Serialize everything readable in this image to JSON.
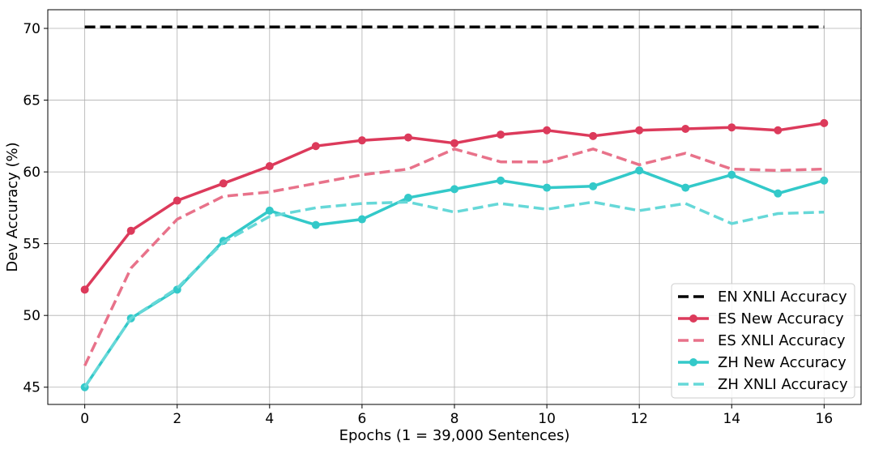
{
  "chart_data": {
    "type": "line",
    "xlabel": "Epochs (1 = 39,000 Sentences)",
    "ylabel": "Dev Accuracy (%)",
    "xlim": [
      -0.8,
      16.8
    ],
    "ylim": [
      43.8,
      71.3
    ],
    "xticks": [
      0,
      2,
      4,
      6,
      8,
      10,
      12,
      14,
      16
    ],
    "yticks": [
      45,
      50,
      55,
      60,
      65,
      70
    ],
    "grid": true,
    "legend_position": "bottom-right",
    "series": [
      {
        "name": "EN XNLI Accuracy",
        "color": "#000000",
        "dashed": true,
        "markers": false,
        "x": [
          0,
          16
        ],
        "y": [
          70.1,
          70.1
        ]
      },
      {
        "name": "ES New Accuracy",
        "color": "#dc3a5b",
        "dashed": false,
        "markers": true,
        "x": [
          0,
          1,
          2,
          3,
          4,
          5,
          6,
          7,
          8,
          9,
          10,
          11,
          12,
          13,
          14,
          15,
          16
        ],
        "y": [
          51.8,
          55.9,
          58.0,
          59.2,
          60.4,
          61.8,
          62.2,
          62.4,
          62.0,
          62.6,
          62.9,
          62.5,
          62.9,
          63.0,
          63.1,
          62.9,
          63.4
        ]
      },
      {
        "name": "ES XNLI Accuracy",
        "color": "#e8728a",
        "dashed": true,
        "markers": false,
        "x": [
          0,
          1,
          2,
          3,
          4,
          5,
          6,
          7,
          8,
          9,
          10,
          11,
          12,
          13,
          14,
          15,
          16
        ],
        "y": [
          46.5,
          53.3,
          56.7,
          58.3,
          58.6,
          59.2,
          59.8,
          60.2,
          61.6,
          60.7,
          60.7,
          61.6,
          60.5,
          61.3,
          60.2,
          60.1,
          60.2
        ]
      },
      {
        "name": "ZH New Accuracy",
        "color": "#33c9c9",
        "dashed": false,
        "markers": true,
        "x": [
          0,
          1,
          2,
          3,
          4,
          5,
          6,
          7,
          8,
          9,
          10,
          11,
          12,
          13,
          14,
          15,
          16
        ],
        "y": [
          45.0,
          49.8,
          51.8,
          55.2,
          57.3,
          56.3,
          56.7,
          58.2,
          58.8,
          59.4,
          58.9,
          59.0,
          60.1,
          58.9,
          59.8,
          58.5,
          59.4
        ]
      },
      {
        "name": "ZH XNLI Accuracy",
        "color": "#66d8d8",
        "dashed": true,
        "markers": false,
        "x": [
          0,
          1,
          2,
          3,
          4,
          5,
          6,
          7,
          8,
          9,
          10,
          11,
          12,
          13,
          14,
          15,
          16
        ],
        "y": [
          45.0,
          49.8,
          51.9,
          55.1,
          56.9,
          57.5,
          57.8,
          57.9,
          57.2,
          57.8,
          57.4,
          57.9,
          57.3,
          57.8,
          56.4,
          57.1,
          57.2
        ]
      }
    ]
  }
}
